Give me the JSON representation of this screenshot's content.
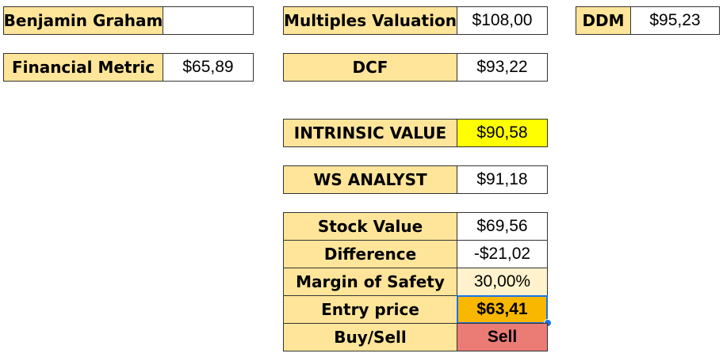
{
  "valuations": {
    "benjamin_graham": {
      "label": "Benjamin Graham",
      "value": ""
    },
    "multiples": {
      "label": "Multiples Valuation",
      "value": "$108,00"
    },
    "ddm": {
      "label": "DDM",
      "value": "$95,23"
    },
    "financial_metric": {
      "label": "Financial Metric",
      "value": "$65,89"
    },
    "dcf": {
      "label": "DCF",
      "value": "$93,22"
    }
  },
  "intrinsic": {
    "label": "INTRINSIC VALUE",
    "value": "$90,58"
  },
  "ws_analyst": {
    "label": "WS ANALYST",
    "value": "$91,18"
  },
  "summary": {
    "stock_value": {
      "label": "Stock Value",
      "value": "$69,56"
    },
    "difference": {
      "label": "Difference",
      "value": "-$21,02"
    },
    "margin_of_safety": {
      "label": "Margin of Safety",
      "value": "30,00%"
    },
    "entry_price": {
      "label": "Entry price",
      "value": "$63,41"
    },
    "buy_sell": {
      "label": "Buy/Sell",
      "value": "Sell"
    }
  },
  "colors": {
    "label_bg": "#ffe599",
    "intrinsic_bg": "#ffff00",
    "margin_bg": "#fff2cc",
    "entry_bg": "#f9b700",
    "sell_bg": "#ea7c75",
    "selection": "#1a73e8"
  }
}
